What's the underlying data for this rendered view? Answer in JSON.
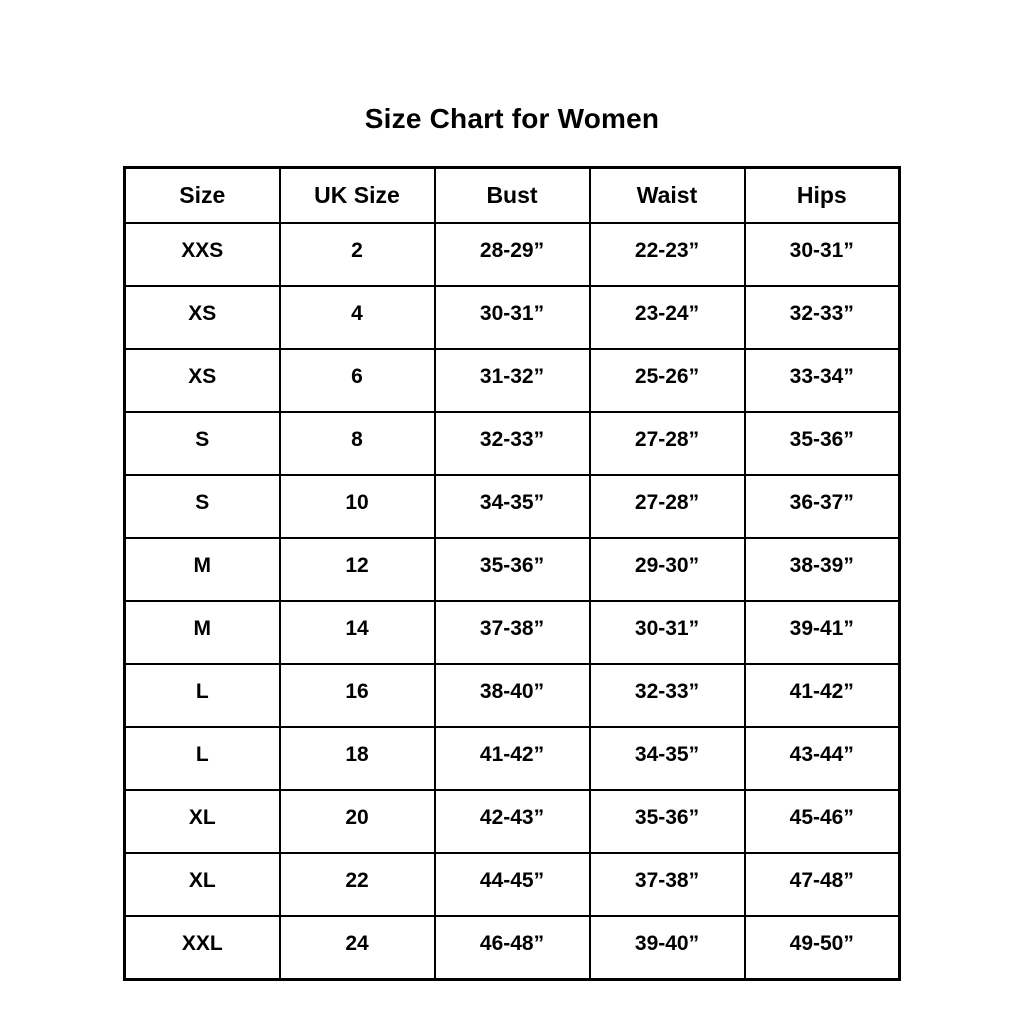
{
  "page": {
    "title": "Size Chart for Women"
  },
  "colors": {
    "background": "#ffffff",
    "text": "#000000",
    "border": "#000000"
  },
  "table": {
    "headers": [
      "Size",
      "UK Size",
      "Bust",
      "Waist",
      "Hips"
    ],
    "rows": [
      [
        "XXS",
        "2",
        "28-29”",
        "22-23”",
        "30-31”"
      ],
      [
        "XS",
        "4",
        "30-31”",
        "23-24”",
        "32-33”"
      ],
      [
        "XS",
        "6",
        "31-32”",
        "25-26”",
        "33-34”"
      ],
      [
        "S",
        "8",
        "32-33”",
        "27-28”",
        "35-36”"
      ],
      [
        "S",
        "10",
        "34-35”",
        "27-28”",
        "36-37”"
      ],
      [
        "M",
        "12",
        "35-36”",
        "29-30”",
        "38-39”"
      ],
      [
        "M",
        "14",
        "37-38”",
        "30-31”",
        "39-41”"
      ],
      [
        "L",
        "16",
        "38-40”",
        "32-33”",
        "41-42”"
      ],
      [
        "L",
        "18",
        "41-42”",
        "34-35”",
        "43-44”"
      ],
      [
        "XL",
        "20",
        "42-43”",
        "35-36”",
        "45-46”"
      ],
      [
        "XL",
        "22",
        "44-45”",
        "37-38”",
        "47-48”"
      ],
      [
        "XXL",
        "24",
        "46-48”",
        "39-40”",
        "49-50”"
      ]
    ]
  }
}
